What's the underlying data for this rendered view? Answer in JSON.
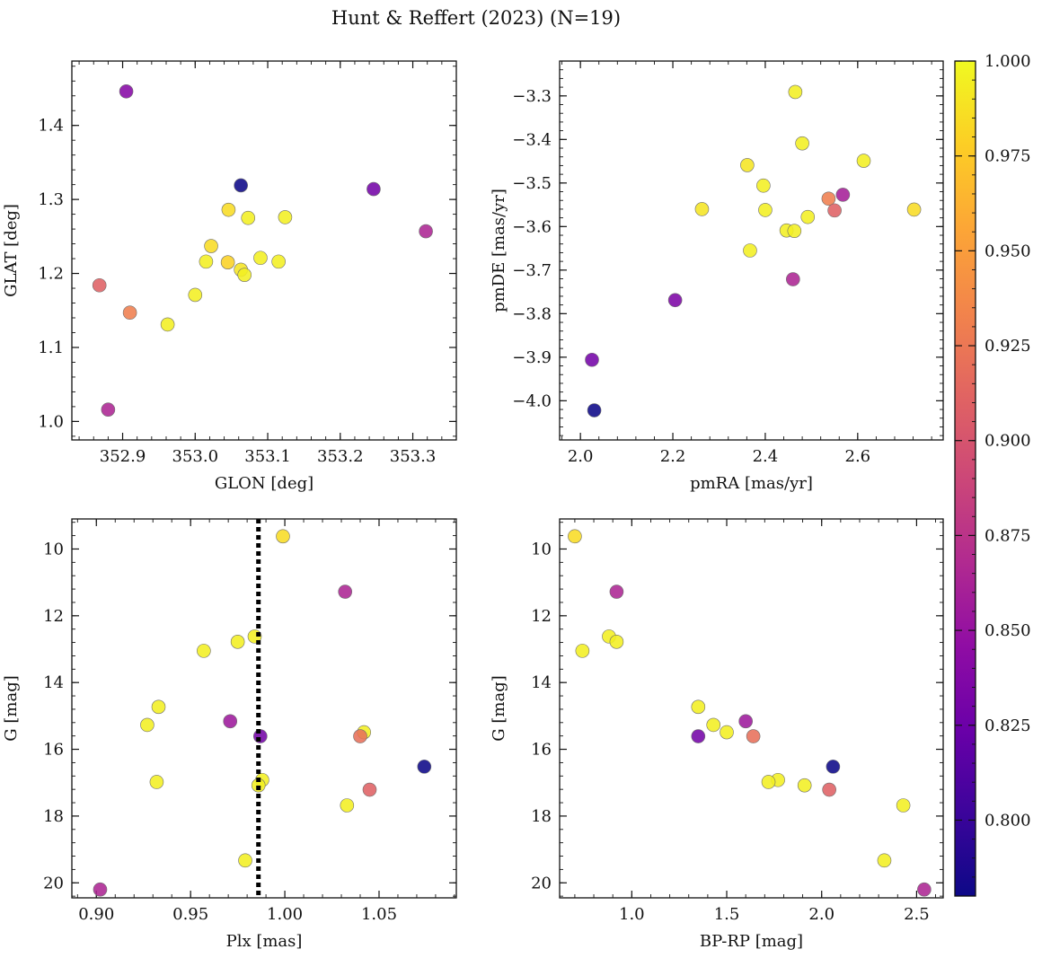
{
  "figure": {
    "title": "Hunt & Reffert (2023) (N=19)"
  },
  "colorbar": {
    "range": [
      0.78,
      1.0
    ],
    "colormap": "plasma",
    "ticks": [
      0.8,
      0.825,
      0.85,
      0.875,
      0.9,
      0.925,
      0.95,
      0.975,
      1.0
    ],
    "tick_labels": [
      "0.800",
      "0.825",
      "0.850",
      "0.875",
      "0.900",
      "0.925",
      "0.950",
      "0.975",
      "1.000"
    ],
    "stops": [
      "#0d0887",
      "#3c049b",
      "#6a00a8",
      "#900da4",
      "#b12a90",
      "#cc4778",
      "#e16462",
      "#f2844b",
      "#fca636",
      "#fcce25",
      "#f0f921"
    ]
  },
  "chart_data": [
    {
      "type": "scatter",
      "name": "sky-position",
      "xlabel": "GLON [deg]",
      "ylabel": "GLAT [deg]",
      "xlim": [
        352.83,
        353.36
      ],
      "ylim": [
        0.975,
        1.487
      ],
      "xticks": [
        352.9,
        353.0,
        353.1,
        353.2,
        353.3
      ],
      "xtick_labels": [
        "352.9",
        "353.0",
        "353.1",
        "353.2",
        "353.3"
      ],
      "yticks": [
        1.0,
        1.1,
        1.2,
        1.3,
        1.4
      ],
      "ytick_labels": [
        "1.0",
        "1.1",
        "1.2",
        "1.3",
        "1.4"
      ],
      "x_minor_step": 0.02,
      "y_minor_step": 0.02,
      "y_inverted": false,
      "points": [
        {
          "x": 352.905,
          "y": 1.446,
          "c": 0.84
        },
        {
          "x": 353.063,
          "y": 1.319,
          "c": 0.78
        },
        {
          "x": 353.246,
          "y": 1.314,
          "c": 0.83
        },
        {
          "x": 353.318,
          "y": 1.257,
          "c": 0.865
        },
        {
          "x": 352.868,
          "y": 1.184,
          "c": 0.91
        },
        {
          "x": 352.91,
          "y": 1.147,
          "c": 0.93
        },
        {
          "x": 352.88,
          "y": 1.016,
          "c": 0.865
        },
        {
          "x": 352.962,
          "y": 1.131,
          "c": 0.995
        },
        {
          "x": 353.0,
          "y": 1.171,
          "c": 0.995
        },
        {
          "x": 353.015,
          "y": 1.216,
          "c": 0.995
        },
        {
          "x": 353.022,
          "y": 1.237,
          "c": 0.985
        },
        {
          "x": 353.045,
          "y": 1.215,
          "c": 0.98
        },
        {
          "x": 353.046,
          "y": 1.286,
          "c": 0.985
        },
        {
          "x": 353.063,
          "y": 1.205,
          "c": 0.99
        },
        {
          "x": 353.068,
          "y": 1.198,
          "c": 0.995
        },
        {
          "x": 353.073,
          "y": 1.275,
          "c": 0.995
        },
        {
          "x": 353.09,
          "y": 1.221,
          "c": 0.995
        },
        {
          "x": 353.115,
          "y": 1.216,
          "c": 0.995
        },
        {
          "x": 353.124,
          "y": 1.276,
          "c": 0.995
        }
      ]
    },
    {
      "type": "scatter",
      "name": "proper-motion",
      "xlabel": "pmRA [mas/yr]",
      "ylabel": "pmDE [mas/yr]",
      "xlim": [
        1.955,
        2.785
      ],
      "ylim": [
        -4.09,
        -3.22
      ],
      "xticks": [
        2.0,
        2.2,
        2.4,
        2.6
      ],
      "xtick_labels": [
        "2.0",
        "2.2",
        "2.4",
        "2.6"
      ],
      "yticks": [
        -4.0,
        -3.9,
        -3.8,
        -3.7,
        -3.6,
        -3.5,
        -3.4,
        -3.3
      ],
      "ytick_labels": [
        "−4.0",
        "−3.9",
        "−3.8",
        "−3.7",
        "−3.6",
        "−3.5",
        "−3.4",
        "−3.3"
      ],
      "x_minor_step": 0.04,
      "y_minor_step": 0.02,
      "y_inverted": false,
      "points": [
        {
          "x": 2.465,
          "y": -3.291,
          "c": 0.995
        },
        {
          "x": 2.48,
          "y": -3.409,
          "c": 0.995
        },
        {
          "x": 2.613,
          "y": -3.449,
          "c": 0.995
        },
        {
          "x": 2.361,
          "y": -3.459,
          "c": 0.99
        },
        {
          "x": 2.396,
          "y": -3.506,
          "c": 0.995
        },
        {
          "x": 2.568,
          "y": -3.527,
          "c": 0.86
        },
        {
          "x": 2.537,
          "y": -3.536,
          "c": 0.93
        },
        {
          "x": 2.263,
          "y": -3.56,
          "c": 0.99
        },
        {
          "x": 2.4,
          "y": -3.562,
          "c": 0.995
        },
        {
          "x": 2.55,
          "y": -3.563,
          "c": 0.91
        },
        {
          "x": 2.722,
          "y": -3.561,
          "c": 0.985
        },
        {
          "x": 2.492,
          "y": -3.578,
          "c": 0.995
        },
        {
          "x": 2.446,
          "y": -3.609,
          "c": 0.995
        },
        {
          "x": 2.463,
          "y": -3.61,
          "c": 0.995
        },
        {
          "x": 2.367,
          "y": -3.655,
          "c": 0.995
        },
        {
          "x": 2.46,
          "y": -3.721,
          "c": 0.865
        },
        {
          "x": 2.205,
          "y": -3.769,
          "c": 0.835
        },
        {
          "x": 2.025,
          "y": -3.906,
          "c": 0.83
        },
        {
          "x": 2.03,
          "y": -4.022,
          "c": 0.78
        }
      ]
    },
    {
      "type": "scatter",
      "name": "parallax-magnitude",
      "xlabel": "Plx [mas]",
      "ylabel": "G [mag]",
      "xlim": [
        0.887,
        1.091
      ],
      "ylim": [
        9.1,
        20.45
      ],
      "xticks": [
        0.9,
        0.95,
        1.0,
        1.05
      ],
      "xtick_labels": [
        "0.90",
        "0.95",
        "1.00",
        "1.05"
      ],
      "yticks": [
        10,
        12,
        14,
        16,
        18,
        20
      ],
      "ytick_labels": [
        "10",
        "12",
        "14",
        "16",
        "18",
        "20"
      ],
      "x_minor_step": 0.01,
      "y_minor_step": 0.4,
      "y_inverted": true,
      "vline": {
        "x": 0.986,
        "style": "dotted",
        "color": "#000000"
      },
      "points": [
        {
          "x": 0.999,
          "y": 9.62,
          "c": 0.985
        },
        {
          "x": 1.032,
          "y": 11.28,
          "c": 0.865
        },
        {
          "x": 0.984,
          "y": 12.62,
          "c": 0.995
        },
        {
          "x": 0.975,
          "y": 12.78,
          "c": 0.995
        },
        {
          "x": 0.957,
          "y": 13.05,
          "c": 0.995
        },
        {
          "x": 0.933,
          "y": 14.73,
          "c": 0.995
        },
        {
          "x": 0.971,
          "y": 15.16,
          "c": 0.855
        },
        {
          "x": 0.927,
          "y": 15.27,
          "c": 0.995
        },
        {
          "x": 1.042,
          "y": 15.49,
          "c": 0.995
        },
        {
          "x": 0.987,
          "y": 15.61,
          "c": 0.83
        },
        {
          "x": 1.04,
          "y": 15.61,
          "c": 0.92
        },
        {
          "x": 1.074,
          "y": 16.52,
          "c": 0.78
        },
        {
          "x": 0.988,
          "y": 16.92,
          "c": 0.995
        },
        {
          "x": 0.932,
          "y": 16.98,
          "c": 0.995
        },
        {
          "x": 0.986,
          "y": 17.08,
          "c": 0.995
        },
        {
          "x": 1.045,
          "y": 17.21,
          "c": 0.91
        },
        {
          "x": 1.033,
          "y": 17.68,
          "c": 0.995
        },
        {
          "x": 0.979,
          "y": 19.33,
          "c": 0.995
        },
        {
          "x": 0.902,
          "y": 20.2,
          "c": 0.865
        }
      ]
    },
    {
      "type": "scatter",
      "name": "colour-magnitude",
      "xlabel": "BP-RP [mag]",
      "ylabel": "G [mag]",
      "xlim": [
        0.62,
        2.64
      ],
      "ylim": [
        9.1,
        20.45
      ],
      "xticks": [
        1.0,
        1.5,
        2.0,
        2.5
      ],
      "xtick_labels": [
        "1.0",
        "1.5",
        "2.0",
        "2.5"
      ],
      "yticks": [
        10,
        12,
        14,
        16,
        18,
        20
      ],
      "ytick_labels": [
        "10",
        "12",
        "14",
        "16",
        "18",
        "20"
      ],
      "x_minor_step": 0.1,
      "y_minor_step": 0.4,
      "y_inverted": true,
      "points": [
        {
          "x": 0.7,
          "y": 9.62,
          "c": 0.985
        },
        {
          "x": 0.92,
          "y": 11.28,
          "c": 0.865
        },
        {
          "x": 0.88,
          "y": 12.62,
          "c": 0.995
        },
        {
          "x": 0.92,
          "y": 12.78,
          "c": 0.995
        },
        {
          "x": 0.74,
          "y": 13.05,
          "c": 0.995
        },
        {
          "x": 1.35,
          "y": 14.73,
          "c": 0.995
        },
        {
          "x": 1.6,
          "y": 15.16,
          "c": 0.855
        },
        {
          "x": 1.43,
          "y": 15.27,
          "c": 0.995
        },
        {
          "x": 1.5,
          "y": 15.49,
          "c": 0.995
        },
        {
          "x": 1.35,
          "y": 15.61,
          "c": 0.83
        },
        {
          "x": 1.64,
          "y": 15.61,
          "c": 0.92
        },
        {
          "x": 2.06,
          "y": 16.52,
          "c": 0.78
        },
        {
          "x": 1.77,
          "y": 16.92,
          "c": 0.995
        },
        {
          "x": 1.72,
          "y": 16.98,
          "c": 0.995
        },
        {
          "x": 1.91,
          "y": 17.08,
          "c": 0.995
        },
        {
          "x": 2.04,
          "y": 17.21,
          "c": 0.91
        },
        {
          "x": 2.43,
          "y": 17.68,
          "c": 0.995
        },
        {
          "x": 2.33,
          "y": 19.33,
          "c": 0.995
        },
        {
          "x": 2.54,
          "y": 20.2,
          "c": 0.865
        }
      ]
    }
  ]
}
